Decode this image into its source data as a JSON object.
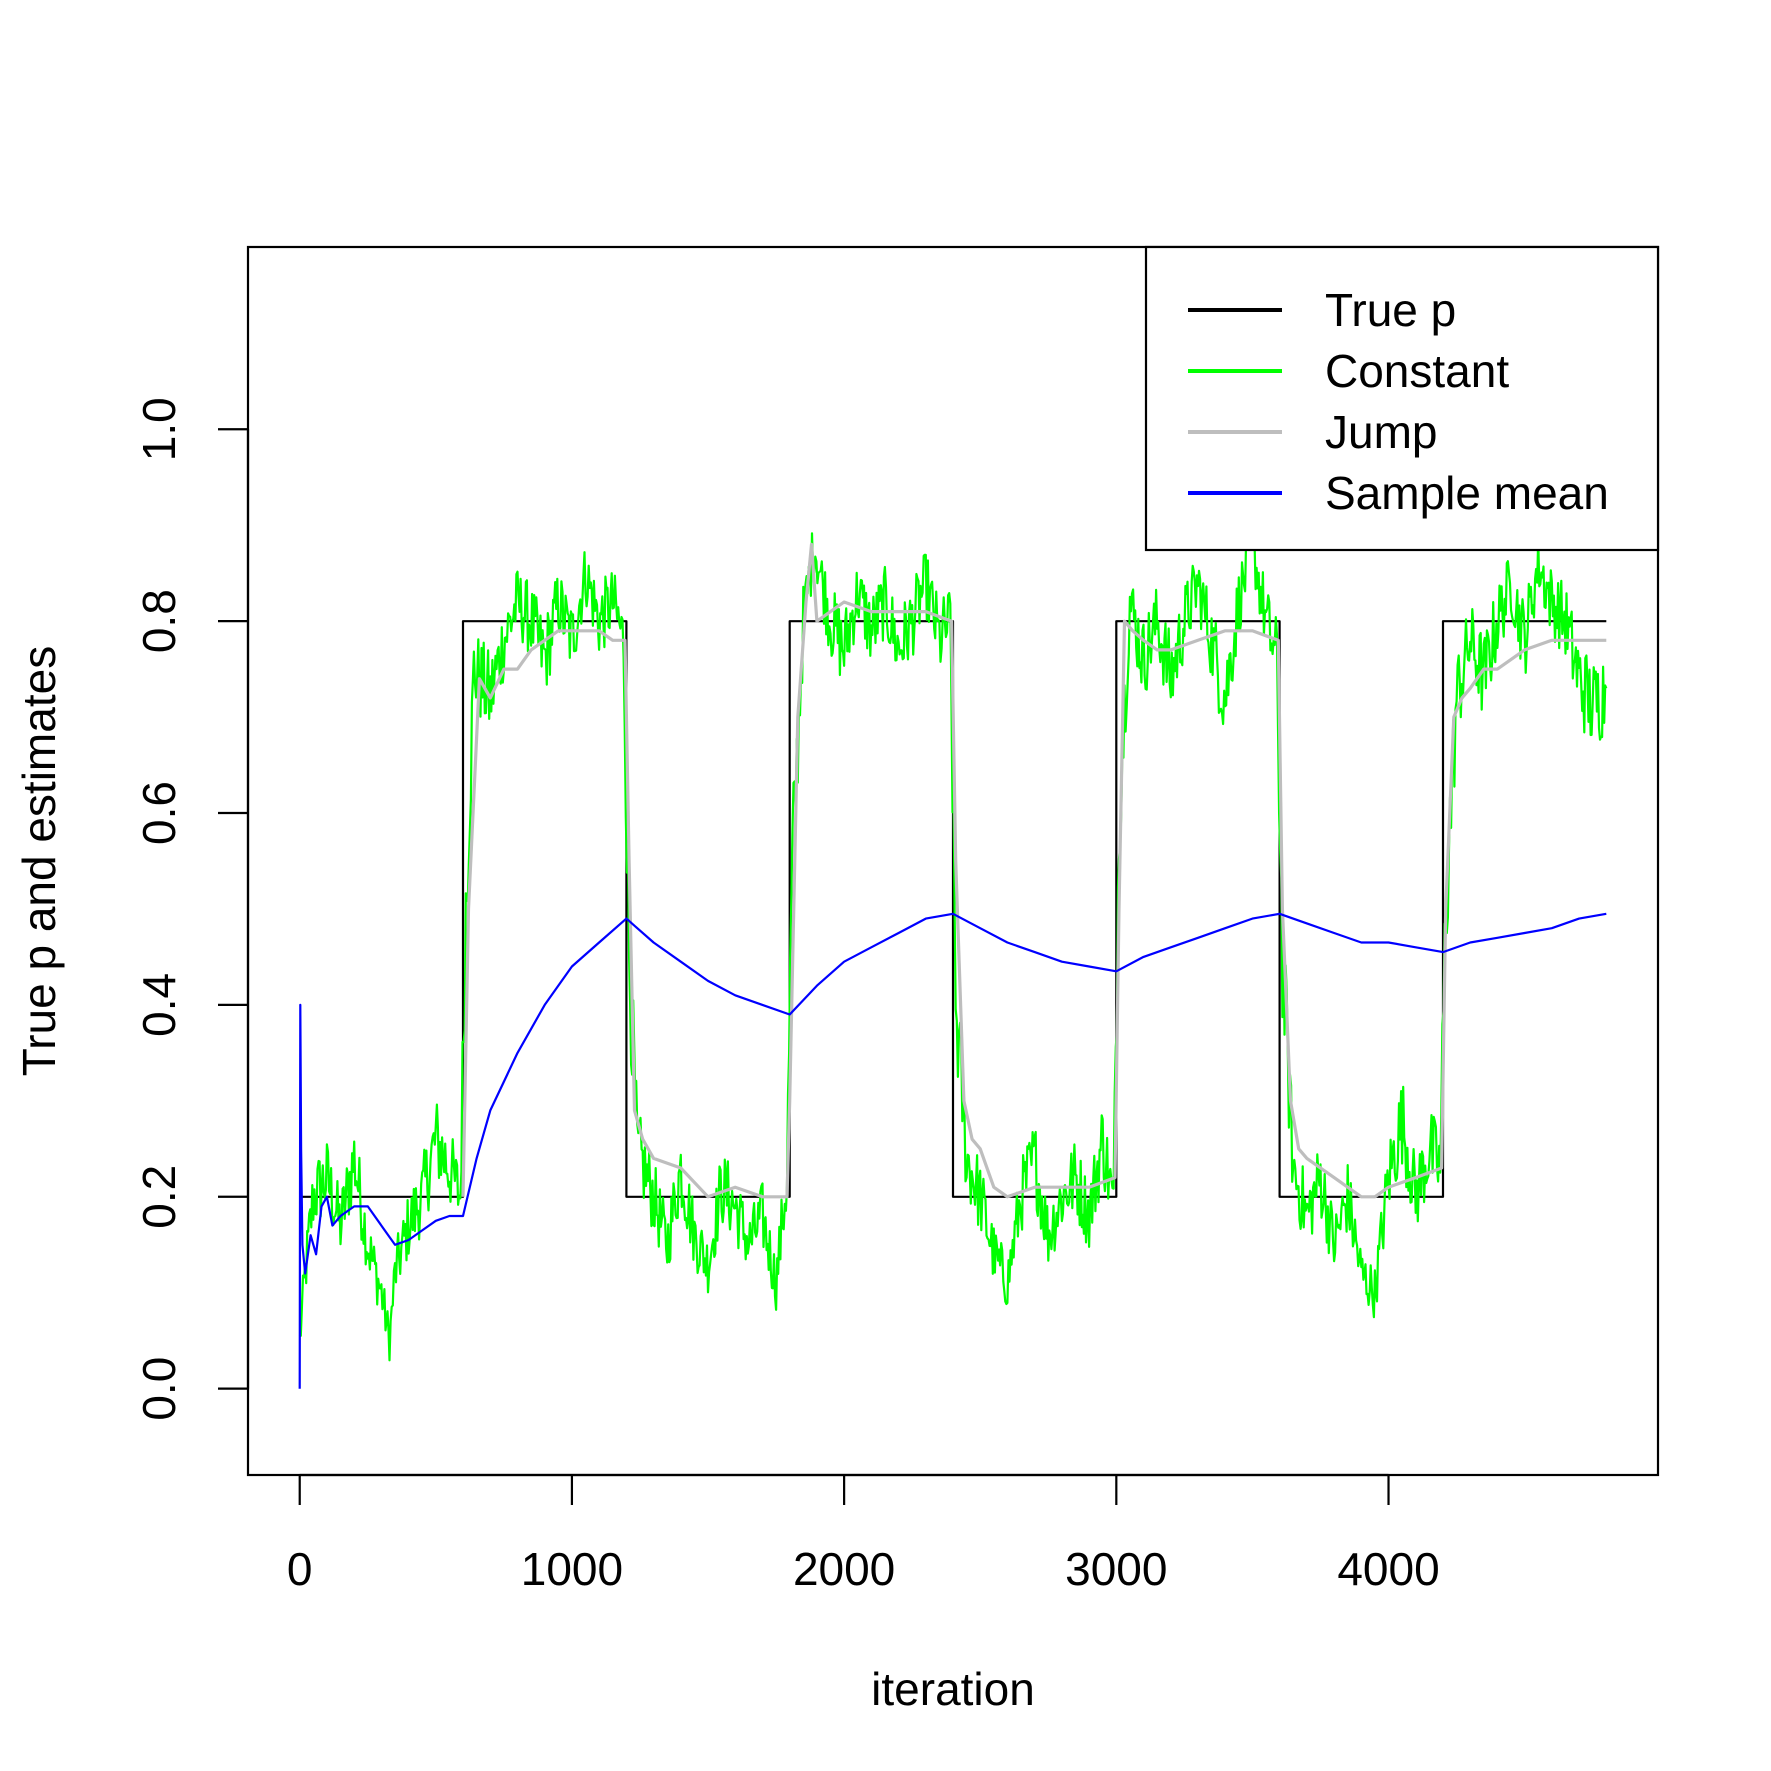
{
  "chart_data": {
    "type": "line",
    "title": "",
    "xlabel": "iteration",
    "ylabel": "True p and estimates",
    "xlim": [
      -190,
      4990
    ],
    "ylim": [
      -0.09,
      1.19
    ],
    "xticks": [
      0,
      1000,
      2000,
      3000,
      4000
    ],
    "yticks": [
      0.0,
      0.2,
      0.4,
      0.6,
      0.8,
      1.0
    ],
    "xtick_labels": [
      "0",
      "1000",
      "2000",
      "3000",
      "4000"
    ],
    "ytick_labels": [
      "0.0",
      "0.2",
      "0.4",
      "0.6",
      "0.8",
      "1.0"
    ],
    "grid": false,
    "legend": {
      "position": "top-right"
    },
    "series": [
      {
        "name": "True p",
        "color": "#000000",
        "style": "step",
        "x": [
          0,
          600,
          600,
          1200,
          1200,
          1800,
          1800,
          2400,
          2400,
          3000,
          3000,
          3600,
          3600,
          4200,
          4200,
          4800
        ],
        "values": [
          0.2,
          0.2,
          0.8,
          0.8,
          0.2,
          0.2,
          0.8,
          0.8,
          0.2,
          0.2,
          0.8,
          0.8,
          0.2,
          0.2,
          0.8,
          0.8
        ]
      },
      {
        "name": "Constant",
        "color": "#00ff00",
        "style": "noisy",
        "x": [
          0,
          20,
          50,
          100,
          150,
          200,
          250,
          300,
          330,
          350,
          400,
          450,
          500,
          550,
          590,
          610,
          640,
          700,
          750,
          800,
          850,
          900,
          950,
          1000,
          1050,
          1100,
          1150,
          1190,
          1210,
          1240,
          1300,
          1350,
          1400,
          1450,
          1500,
          1550,
          1600,
          1650,
          1700,
          1750,
          1790,
          1810,
          1850,
          1890,
          1950,
          2000,
          2050,
          2100,
          2150,
          2200,
          2250,
          2300,
          2350,
          2390,
          2410,
          2450,
          2500,
          2550,
          2600,
          2650,
          2700,
          2750,
          2800,
          2850,
          2900,
          2950,
          2990,
          3010,
          3050,
          3100,
          3150,
          3200,
          3250,
          3300,
          3350,
          3400,
          3450,
          3500,
          3550,
          3590,
          3610,
          3650,
          3700,
          3750,
          3800,
          3850,
          3900,
          3950,
          4000,
          4050,
          4100,
          4150,
          4190,
          4210,
          4250,
          4300,
          4350,
          4400,
          4450,
          4500,
          4550,
          4600,
          4650,
          4700,
          4750,
          4800
        ],
        "values": [
          0.05,
          0.12,
          0.2,
          0.22,
          0.17,
          0.24,
          0.15,
          0.1,
          0.05,
          0.12,
          0.17,
          0.2,
          0.26,
          0.23,
          0.2,
          0.5,
          0.75,
          0.72,
          0.78,
          0.82,
          0.8,
          0.76,
          0.82,
          0.78,
          0.85,
          0.8,
          0.82,
          0.78,
          0.45,
          0.25,
          0.2,
          0.15,
          0.23,
          0.16,
          0.13,
          0.21,
          0.19,
          0.15,
          0.18,
          0.11,
          0.22,
          0.55,
          0.8,
          0.88,
          0.8,
          0.77,
          0.83,
          0.79,
          0.82,
          0.77,
          0.8,
          0.84,
          0.78,
          0.8,
          0.4,
          0.24,
          0.2,
          0.14,
          0.11,
          0.2,
          0.24,
          0.16,
          0.2,
          0.22,
          0.18,
          0.26,
          0.19,
          0.6,
          0.82,
          0.76,
          0.8,
          0.74,
          0.8,
          0.84,
          0.78,
          0.72,
          0.82,
          0.88,
          0.8,
          0.76,
          0.45,
          0.23,
          0.18,
          0.22,
          0.15,
          0.2,
          0.12,
          0.1,
          0.22,
          0.28,
          0.2,
          0.25,
          0.23,
          0.5,
          0.72,
          0.78,
          0.74,
          0.8,
          0.84,
          0.78,
          0.86,
          0.82,
          0.8,
          0.74,
          0.71,
          0.73
        ]
      },
      {
        "name": "Jump",
        "color": "#bebebe",
        "style": "line",
        "x": [
          600,
          620,
          660,
          700,
          750,
          800,
          850,
          900,
          950,
          1000,
          1050,
          1100,
          1150,
          1195,
          1210,
          1230,
          1260,
          1300,
          1400,
          1500,
          1600,
          1700,
          1790,
          1800,
          1830,
          1860,
          1880,
          1900,
          1950,
          2000,
          2100,
          2200,
          2300,
          2395,
          2410,
          2440,
          2470,
          2500,
          2550,
          2600,
          2700,
          2800,
          2900,
          2995,
          3010,
          3030,
          3060,
          3100,
          3150,
          3200,
          3300,
          3400,
          3500,
          3595,
          3610,
          3640,
          3670,
          3700,
          3800,
          3900,
          3950,
          4000,
          4100,
          4195,
          4210,
          4240,
          4270,
          4300,
          4350,
          4400,
          4500,
          4600,
          4700,
          4800
        ],
        "values": [
          0.2,
          0.5,
          0.74,
          0.72,
          0.75,
          0.75,
          0.77,
          0.78,
          0.79,
          0.79,
          0.79,
          0.79,
          0.78,
          0.78,
          0.55,
          0.29,
          0.26,
          0.24,
          0.23,
          0.2,
          0.21,
          0.2,
          0.2,
          0.3,
          0.7,
          0.82,
          0.88,
          0.8,
          0.81,
          0.82,
          0.81,
          0.81,
          0.81,
          0.8,
          0.55,
          0.3,
          0.26,
          0.25,
          0.21,
          0.2,
          0.21,
          0.21,
          0.21,
          0.22,
          0.5,
          0.8,
          0.79,
          0.78,
          0.77,
          0.77,
          0.78,
          0.79,
          0.79,
          0.78,
          0.5,
          0.3,
          0.25,
          0.24,
          0.22,
          0.2,
          0.2,
          0.21,
          0.22,
          0.23,
          0.5,
          0.7,
          0.72,
          0.73,
          0.75,
          0.75,
          0.77,
          0.78,
          0.78,
          0.78
        ]
      },
      {
        "name": "Sample mean",
        "color": "#0000ff",
        "style": "line",
        "x": [
          0,
          2,
          5,
          10,
          20,
          40,
          60,
          80,
          100,
          120,
          150,
          200,
          250,
          300,
          350,
          400,
          450,
          500,
          550,
          600,
          650,
          700,
          800,
          900,
          1000,
          1100,
          1200,
          1300,
          1400,
          1500,
          1600,
          1700,
          1800,
          1900,
          2000,
          2100,
          2200,
          2300,
          2400,
          2500,
          2600,
          2700,
          2800,
          2900,
          3000,
          3100,
          3200,
          3300,
          3400,
          3500,
          3600,
          3700,
          3800,
          3900,
          4000,
          4100,
          4200,
          4300,
          4400,
          4500,
          4600,
          4700,
          4800
        ],
        "values": [
          0.0,
          0.4,
          0.25,
          0.15,
          0.12,
          0.16,
          0.14,
          0.19,
          0.2,
          0.17,
          0.18,
          0.19,
          0.19,
          0.17,
          0.15,
          0.155,
          0.165,
          0.175,
          0.18,
          0.18,
          0.24,
          0.29,
          0.35,
          0.4,
          0.44,
          0.465,
          0.49,
          0.465,
          0.445,
          0.425,
          0.41,
          0.4,
          0.39,
          0.42,
          0.445,
          0.46,
          0.475,
          0.49,
          0.495,
          0.48,
          0.465,
          0.455,
          0.445,
          0.44,
          0.435,
          0.45,
          0.46,
          0.47,
          0.48,
          0.49,
          0.495,
          0.485,
          0.475,
          0.465,
          0.465,
          0.46,
          0.455,
          0.465,
          0.47,
          0.475,
          0.48,
          0.49,
          0.495
        ]
      }
    ]
  }
}
